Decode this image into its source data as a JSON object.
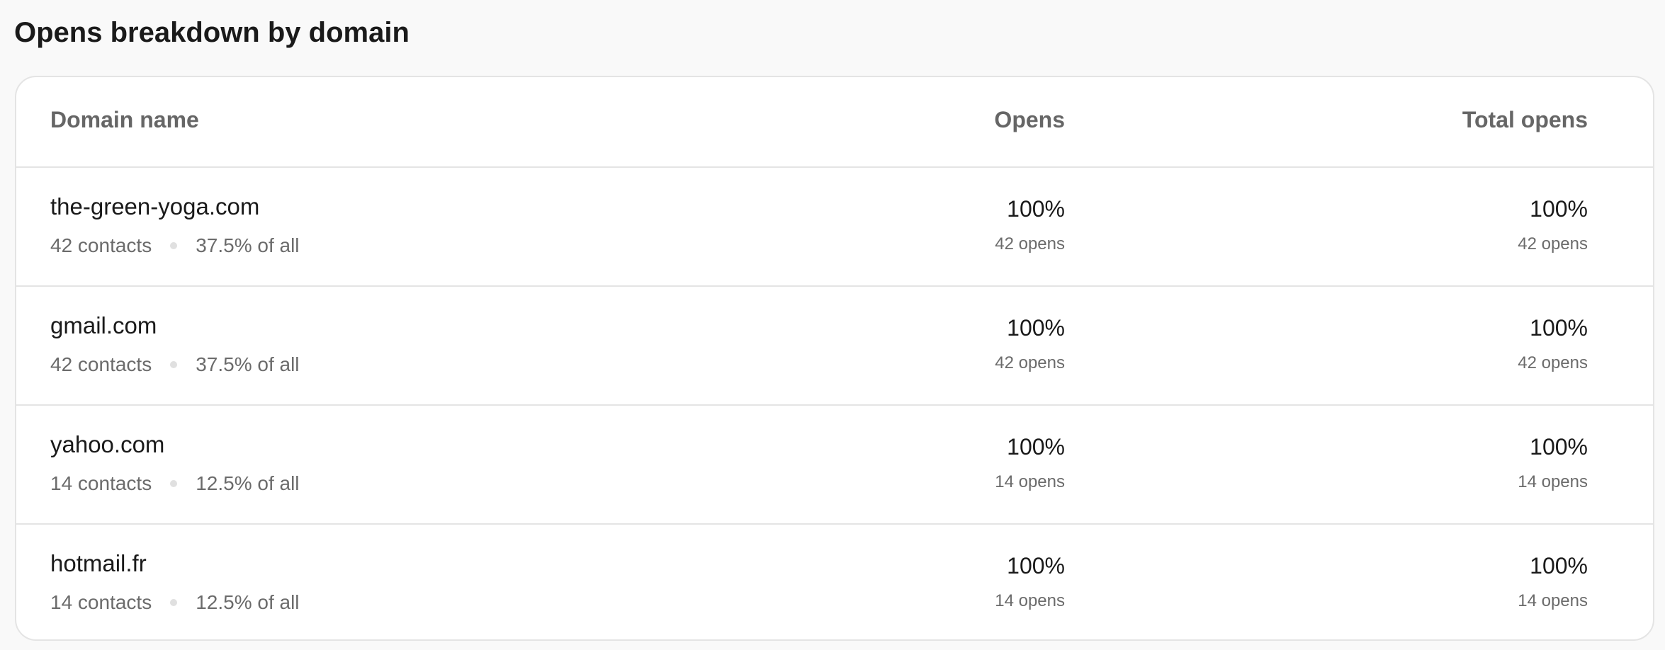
{
  "title": "Opens breakdown by domain",
  "columns": {
    "domain": "Domain name",
    "opens": "Opens",
    "total": "Total opens"
  },
  "rows": [
    {
      "domain": "the-green-yoga.com",
      "contacts": "42 contacts",
      "share": "37.5% of all",
      "opens_pct": "100%",
      "opens_count": "42 opens",
      "total_pct": "100%",
      "total_count": "42 opens"
    },
    {
      "domain": "gmail.com",
      "contacts": "42 contacts",
      "share": "37.5% of all",
      "opens_pct": "100%",
      "opens_count": "42 opens",
      "total_pct": "100%",
      "total_count": "42 opens"
    },
    {
      "domain": "yahoo.com",
      "contacts": "14 contacts",
      "share": "12.5% of all",
      "opens_pct": "100%",
      "opens_count": "14 opens",
      "total_pct": "100%",
      "total_count": "14 opens"
    },
    {
      "domain": "hotmail.fr",
      "contacts": "14 contacts",
      "share": "12.5% of all",
      "opens_pct": "100%",
      "opens_count": "14 opens",
      "total_pct": "100%",
      "total_count": "14 opens"
    }
  ]
}
